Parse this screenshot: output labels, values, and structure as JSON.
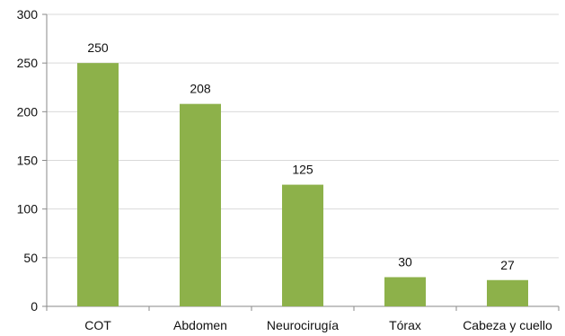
{
  "chart_data": {
    "type": "bar",
    "categories": [
      "COT",
      "Abdomen",
      "Neurocirugía",
      "Tórax",
      "Cabeza y cuello"
    ],
    "values": [
      250,
      208,
      125,
      30,
      27
    ],
    "data_labels": [
      "250",
      "208",
      "125",
      "30",
      "27"
    ],
    "title": "",
    "xlabel": "",
    "ylabel": "",
    "ylim": [
      0,
      300
    ],
    "yticks": [
      0,
      50,
      100,
      150,
      200,
      250,
      300
    ],
    "grid": true,
    "legend": "none",
    "bar_color": "#8db14a"
  }
}
